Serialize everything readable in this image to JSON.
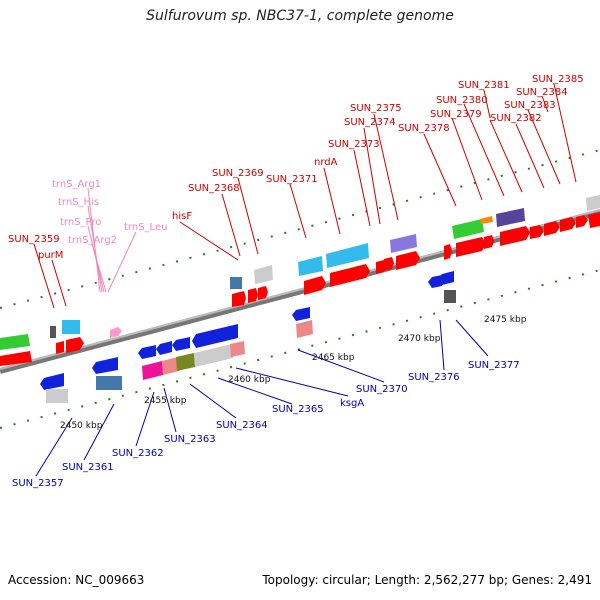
{
  "title": "Sulfurovum sp. NBC37-1, complete genome",
  "footer": {
    "accession": "Accession: NC_009663",
    "info": "Topology: circular; Length: 2,562,277 bp; Genes: 2,491"
  },
  "colors": {
    "forward_label": "#cc0000",
    "reverse_label": "#0000aa",
    "rna_label": "#ee88bb",
    "backbone": "#888888",
    "tick": "#2a7a2a"
  },
  "scale_labels": [
    "2450 kbp",
    "2455 kbp",
    "2460 kbp",
    "2465 kbp",
    "2470 kbp",
    "2475 kbp"
  ],
  "forward_labels": [
    "SUN_2359",
    "purM",
    "hisF",
    "SUN_2368",
    "SUN_2369",
    "SUN_2371",
    "nrdA",
    "SUN_2373",
    "SUN_2374",
    "SUN_2375",
    "SUN_2378",
    "SUN_2379",
    "SUN_2380",
    "SUN_2381",
    "SUN_2382",
    "SUN_2383",
    "SUN_2384",
    "SUN_2385"
  ],
  "rna_labels": [
    "trnS_Arg1",
    "trnS_His",
    "trnS_Pro",
    "trnS_Arg2",
    "trnS_Leu"
  ],
  "reverse_labels": [
    "SUN_2357",
    "SUN_2361",
    "SUN_2362",
    "SUN_2363",
    "SUN_2364",
    "SUN_2365",
    "ksgA",
    "SUN_2370",
    "SUN_2376",
    "SUN_2377"
  ]
}
